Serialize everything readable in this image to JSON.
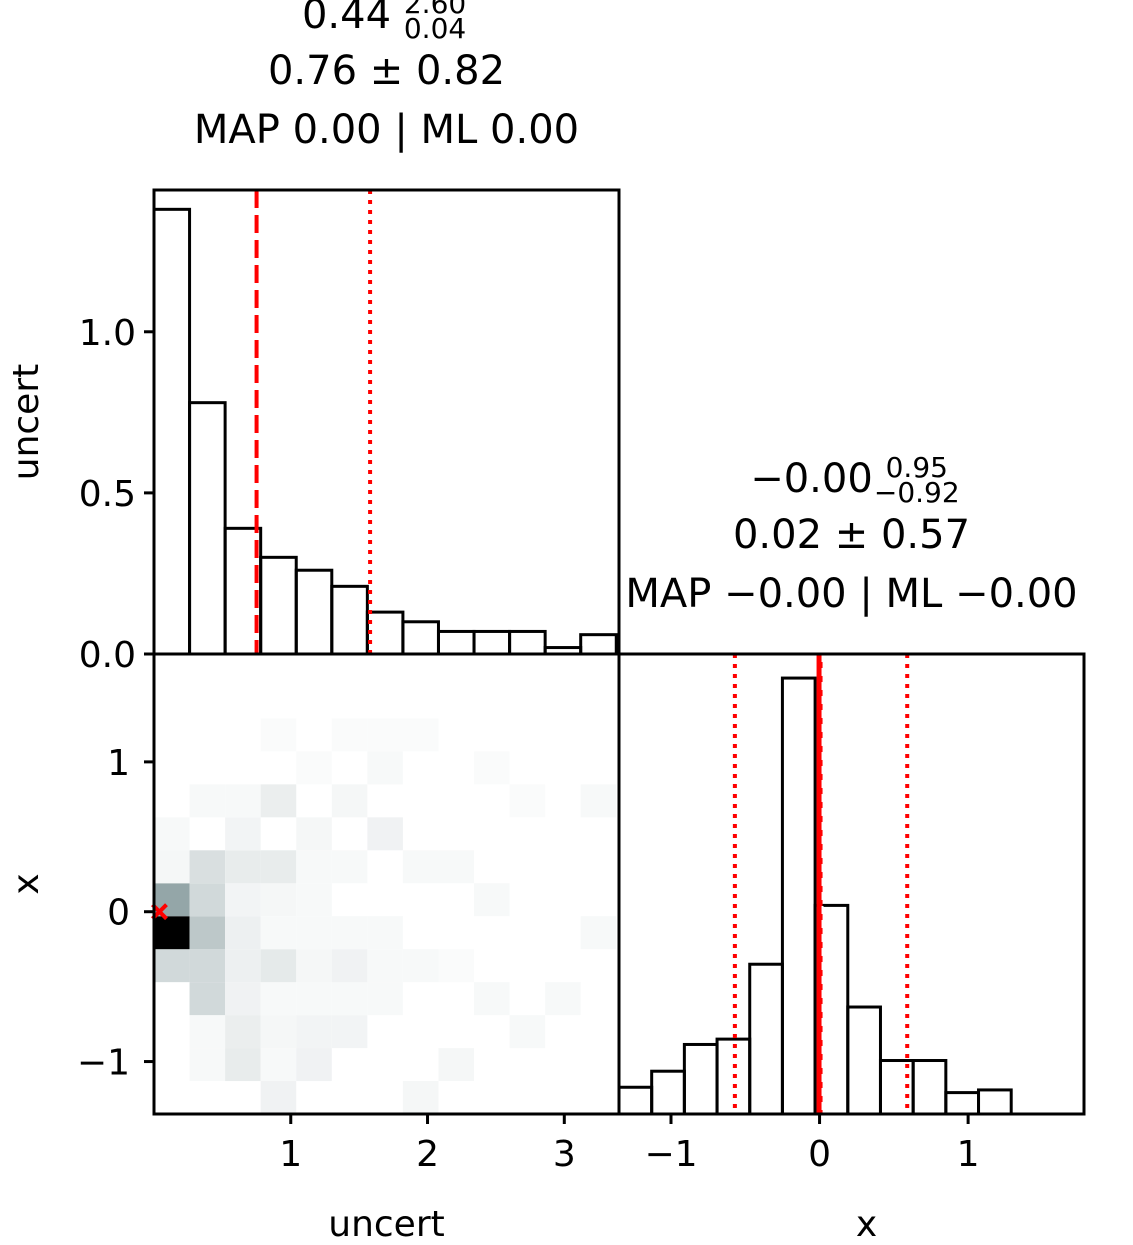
{
  "chart_data": [
    {
      "id": "uncert_hist",
      "type": "bar",
      "title_lines": [
        {
          "main": "0.44",
          "sup": "2.60",
          "sub": "0.04"
        },
        {
          "text": "0.76 ± 0.82"
        },
        {
          "text": "MAP 0.00 | ML 0.00"
        }
      ],
      "ylabel": "uncert",
      "xlim": [
        0.0,
        3.4
      ],
      "ylim": [
        0.0,
        1.44
      ],
      "yticks": [
        0.0,
        0.5,
        1.0
      ],
      "ytick_labels": [
        "0.0",
        "0.5",
        "1.0"
      ],
      "bin_edges": [
        0.0,
        0.26,
        0.52,
        0.78,
        1.04,
        1.3,
        1.56,
        1.82,
        2.08,
        2.34,
        2.6,
        2.86,
        3.12,
        3.38
      ],
      "values": [
        1.38,
        0.78,
        0.39,
        0.3,
        0.26,
        0.21,
        0.13,
        0.1,
        0.07,
        0.07,
        0.07,
        0.02,
        0.06
      ],
      "lines": [
        {
          "x": 0.75,
          "style": "dashed",
          "color": "#ff0000"
        },
        {
          "x": 1.58,
          "style": "dotted",
          "color": "#ff0000"
        }
      ]
    },
    {
      "id": "joint_density",
      "type": "heatmap",
      "xlabel": "uncert",
      "ylabel": "x",
      "xlim": [
        0.0,
        3.4
      ],
      "ylim": [
        -1.35,
        1.72
      ],
      "xticks": [
        1,
        2,
        3
      ],
      "xtick_labels": [
        "1",
        "2",
        "3"
      ],
      "yticks": [
        -1,
        0,
        1
      ],
      "ytick_labels": [
        "−1",
        "0",
        "1"
      ],
      "x_edges": [
        0.0,
        0.26,
        0.52,
        0.78,
        1.04,
        1.3,
        1.56,
        1.82,
        2.08,
        2.34,
        2.6,
        2.86,
        3.12,
        3.38
      ],
      "y_edges": [
        -1.35,
        -1.13,
        -0.91,
        -0.69,
        -0.47,
        -0.25,
        -0.03,
        0.19,
        0.41,
        0.63,
        0.85,
        1.07,
        1.29,
        1.51,
        1.72
      ],
      "cmap": [
        "#ffffff",
        "#cfe0e0",
        "#8fa6a8",
        "#000000"
      ],
      "counts": [
        [
          0,
          0,
          0,
          0.06,
          0,
          0,
          0,
          0.04,
          0,
          0,
          0,
          0,
          0
        ],
        [
          0,
          0.03,
          0.09,
          0.03,
          0.06,
          0,
          0,
          0,
          0.04,
          0,
          0,
          0,
          0
        ],
        [
          0,
          0.03,
          0.08,
          0.04,
          0.05,
          0.05,
          0,
          0,
          0,
          0,
          0.03,
          0,
          0
        ],
        [
          0,
          0.18,
          0.06,
          0.03,
          0.03,
          0.03,
          0.03,
          0,
          0,
          0.03,
          0,
          0.03,
          0
        ],
        [
          0.18,
          0.18,
          0.07,
          0.1,
          0.04,
          0.06,
          0.03,
          0.03,
          0.02,
          0,
          0,
          0,
          0
        ],
        [
          1.0,
          0.26,
          0.07,
          0.03,
          0.03,
          0.03,
          0.03,
          0,
          0,
          0,
          0,
          0,
          0.03
        ],
        [
          0.42,
          0.18,
          0.05,
          0.04,
          0.03,
          0,
          0,
          0,
          0,
          0.03,
          0,
          0,
          0
        ],
        [
          0.04,
          0.15,
          0.09,
          0.09,
          0.03,
          0.03,
          0,
          0.03,
          0.03,
          0,
          0,
          0,
          0
        ],
        [
          0.03,
          0,
          0.05,
          0,
          0.04,
          0,
          0.06,
          0,
          0,
          0,
          0,
          0,
          0
        ],
        [
          0,
          0.03,
          0.03,
          0.08,
          0,
          0.04,
          0,
          0,
          0,
          0,
          0.02,
          0,
          0.03
        ],
        [
          0,
          0,
          0,
          0,
          0.02,
          0,
          0.03,
          0,
          0,
          0.02,
          0,
          0,
          0
        ],
        [
          0,
          0,
          0,
          0.02,
          0,
          0.02,
          0.02,
          0.02,
          0,
          0,
          0,
          0,
          0
        ],
        [
          0,
          0,
          0,
          0,
          0,
          0,
          0,
          0,
          0,
          0,
          0,
          0,
          0
        ],
        [
          0,
          0,
          0,
          0,
          0,
          0,
          0,
          0,
          0,
          0,
          0,
          0,
          0
        ]
      ],
      "marker": {
        "x": 0.04,
        "y": 0.0,
        "symbol": "x",
        "color": "#ff0000"
      }
    },
    {
      "id": "x_hist",
      "type": "bar",
      "title_lines": [
        {
          "main": "−0.00",
          "sup": "0.95",
          "sub": "−0.92"
        },
        {
          "text": "0.02 ± 0.57"
        },
        {
          "text": "MAP −0.00 | ML −0.00"
        }
      ],
      "xlabel": "x",
      "xlim": [
        -1.35,
        1.78
      ],
      "ylim": [
        0.0,
        1.72
      ],
      "xticks": [
        -1,
        0,
        1
      ],
      "xtick_labels": [
        "−1",
        "0",
        "1"
      ],
      "bin_edges": [
        -1.35,
        -1.13,
        -0.91,
        -0.69,
        -0.47,
        -0.25,
        -0.03,
        0.19,
        0.41,
        0.63,
        0.85,
        1.07,
        1.29,
        1.51
      ],
      "values": [
        0.1,
        0.16,
        0.26,
        0.28,
        0.56,
        1.63,
        0.78,
        0.4,
        0.2,
        0.2,
        0.08,
        0.09,
        0.0
      ],
      "lines": [
        {
          "x": -0.57,
          "style": "dotted",
          "color": "#ff0000"
        },
        {
          "x": 0.0,
          "style": "solid",
          "color": "#ff0000"
        },
        {
          "x": 0.02,
          "style": "dashed",
          "color": "#ffffff"
        },
        {
          "x": 0.59,
          "style": "dotted",
          "color": "#ff0000"
        }
      ]
    }
  ]
}
